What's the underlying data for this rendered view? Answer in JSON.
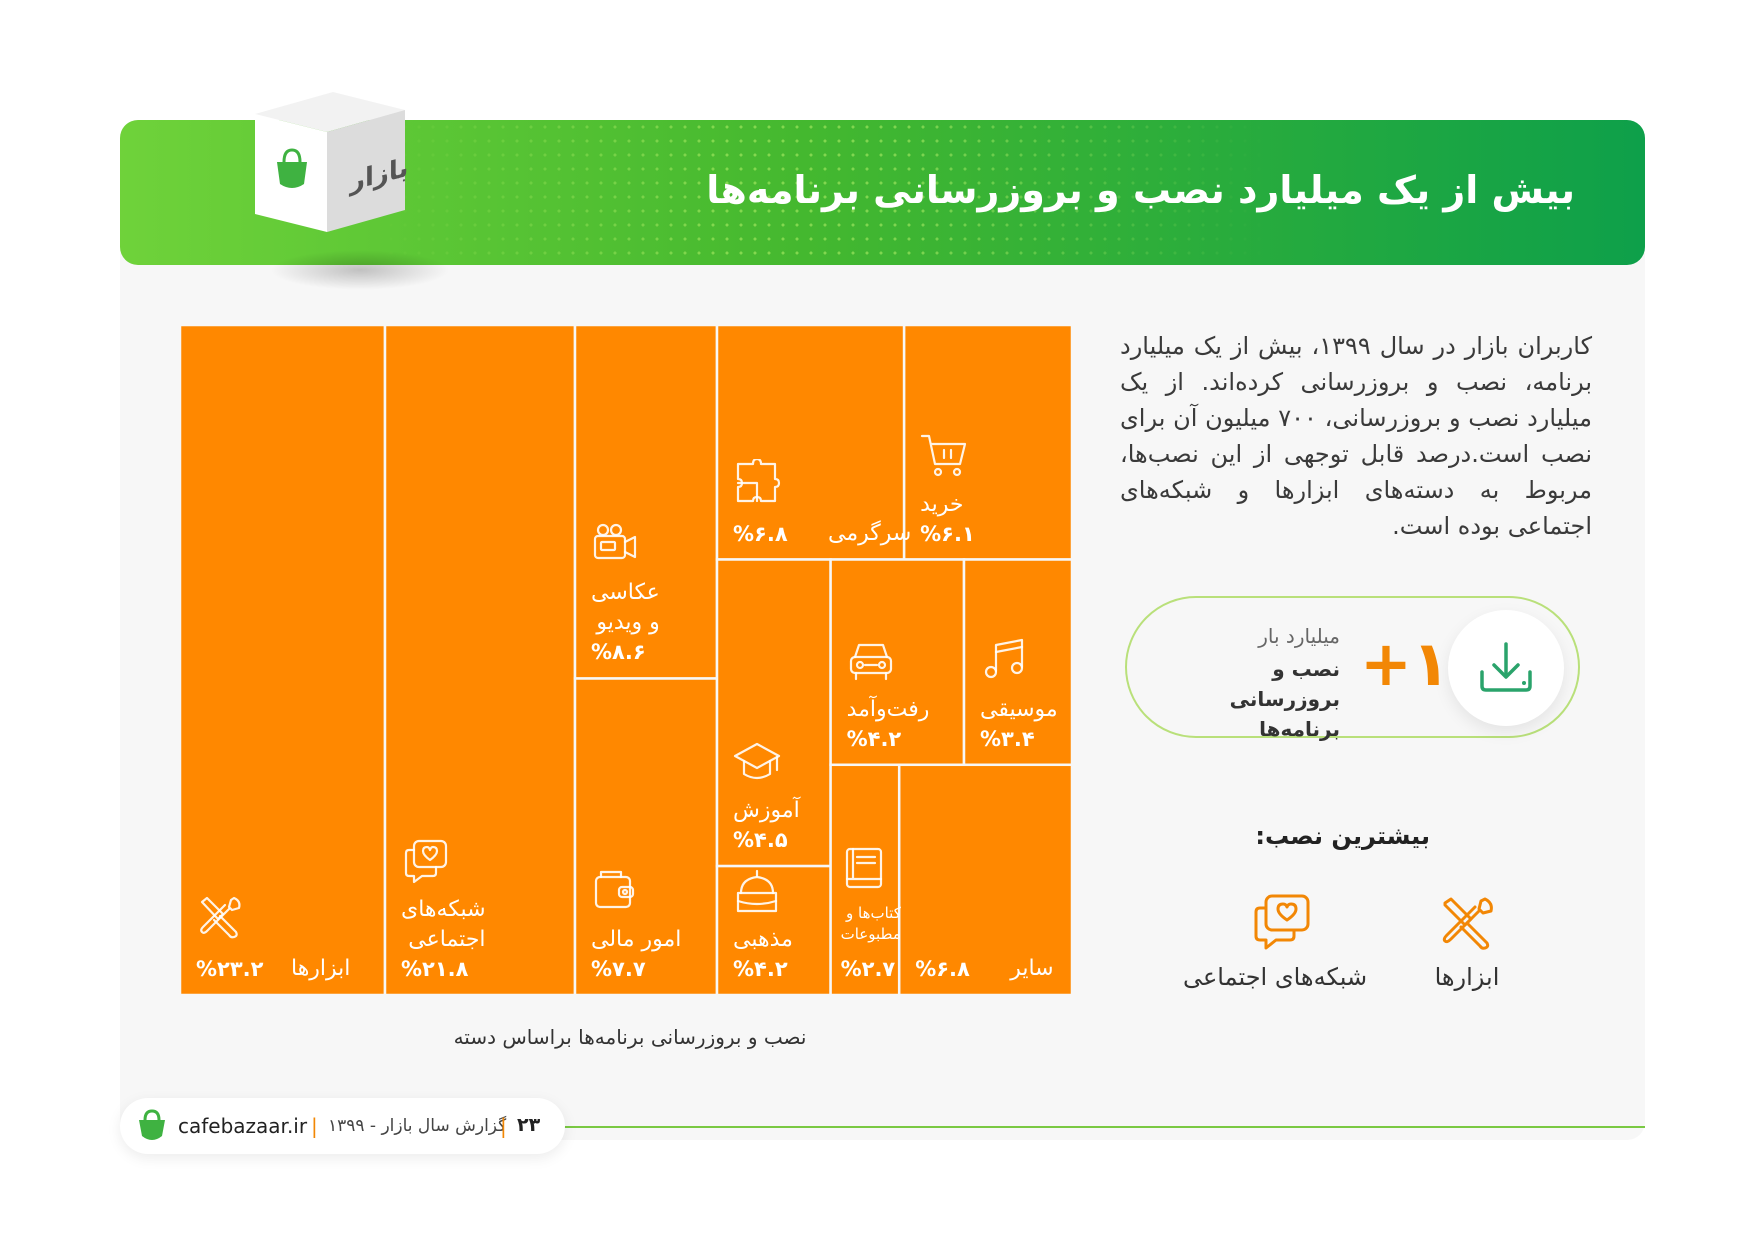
{
  "header": {
    "title": "بیش از یک میلیارد نصب و بروزرسانی برنامه‌ها",
    "box_brand": "بازار"
  },
  "description": "کاربران بازار در سال ۱۳۹۹، بیش از یک میلیارد برنامه، نصب و بروزرسانی کرده‌اند. از یک میلیارد نصب و بروزرسانی، ۷۰۰ میلیون آن برای نصب است.درصد قابل توجهی از این نصب‌ها، مربوط به دسته‌های ابزارها و شبکه‌های اجتماعی بوده است.",
  "stat": {
    "number": "+۱",
    "small_label": "میلیارد بار",
    "big_label": "نصب و بروزرسانی برنامه‌ها",
    "icon": "download-icon"
  },
  "most_installed": {
    "title": "بیشترین نصب:",
    "items": [
      {
        "label": "ابزارها",
        "icon": "tools-icon"
      },
      {
        "label": "شبکه‌های اجتماعی",
        "icon": "social-chat-icon"
      }
    ]
  },
  "chart_data": {
    "type": "treemap",
    "title": "",
    "caption": "نصب و بروزرسانی برنامه‌ها براساس دسته",
    "unit": "%",
    "color": "#ff8800",
    "categories": [
      {
        "name": "ابزارها",
        "value": 23.2,
        "pct_label": "%۲۳.۲",
        "icon": "tools-icon"
      },
      {
        "name": "شبکه‌های\nاجتماعی",
        "value": 21.8,
        "pct_label": "%۲۱.۸",
        "icon": "social-chat-icon"
      },
      {
        "name": "عکاسی\nو ویدیو",
        "value": 8.6,
        "pct_label": "%۸.۶",
        "icon": "camera-icon"
      },
      {
        "name": "امور مالی",
        "value": 7.7,
        "pct_label": "%۷.۷",
        "icon": "wallet-icon"
      },
      {
        "name": "سرگرمی",
        "value": 6.8,
        "pct_label": "%۶.۸",
        "icon": "puzzle-icon"
      },
      {
        "name": "خرید",
        "value": 6.1,
        "pct_label": "%۶.۱",
        "icon": "cart-icon"
      },
      {
        "name": "آموزش",
        "value": 4.5,
        "pct_label": "%۴.۵",
        "icon": "graduation-cap-icon"
      },
      {
        "name": "رفت‌وآمد",
        "value": 4.2,
        "pct_label": "%۴.۲",
        "icon": "car-icon"
      },
      {
        "name": "موسیقی",
        "value": 3.4,
        "pct_label": "%۳.۴",
        "icon": "music-note-icon"
      },
      {
        "name": "مذهبی",
        "value": 4.2,
        "pct_label": "%۴.۲",
        "icon": "mosque-icon"
      },
      {
        "name": "کتاب‌ها و\nمطبوعات",
        "value": 2.7,
        "pct_label": "%۲.۷",
        "icon": "book-icon"
      },
      {
        "name": "سایر",
        "value": 6.8,
        "pct_label": "%۶.۸",
        "icon": ""
      }
    ]
  },
  "footer": {
    "site": "cafebazaar.ir",
    "report": "گزارش سال بازار - ۱۳۹۹",
    "page": "۲۳",
    "separator": "|"
  }
}
